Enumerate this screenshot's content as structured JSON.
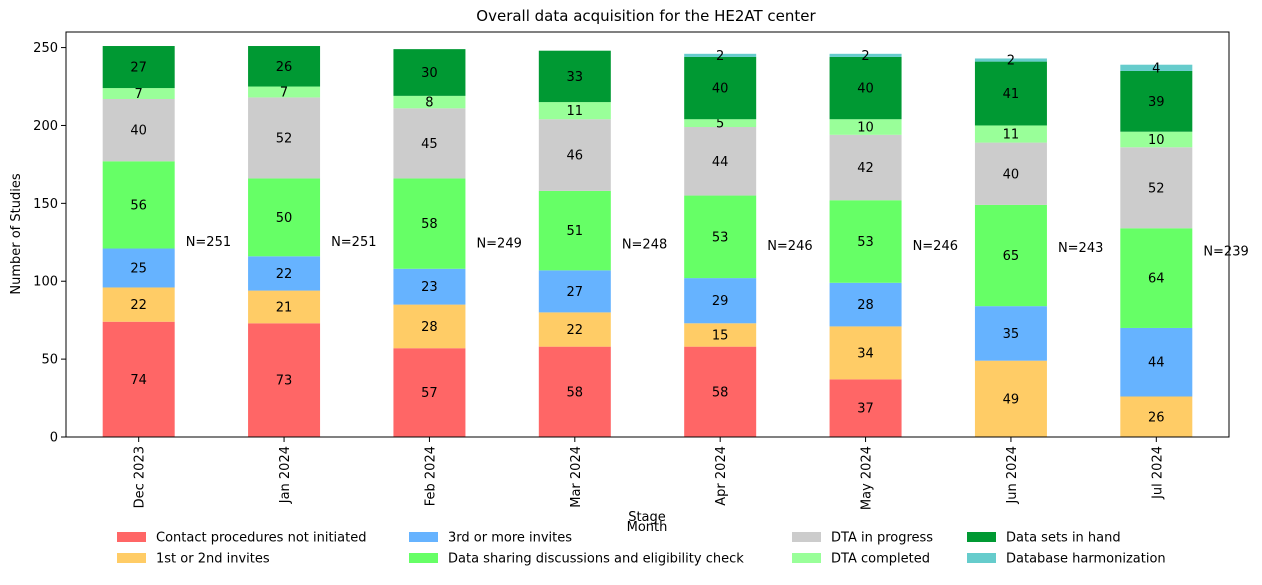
{
  "chart_data": {
    "type": "bar",
    "stacked": true,
    "title": "Overall data acquisition for the HE2AT center",
    "xlabel": "Month",
    "ylabel": "Number of Studies",
    "legend_title": "Stage",
    "legend_placement": "bottom",
    "grid": false,
    "ylim": [
      0,
      260
    ],
    "yticks": [
      0,
      50,
      100,
      150,
      200,
      250
    ],
    "categories": [
      "Dec 2023",
      "Jan 2024",
      "Feb 2024",
      "Mar 2024",
      "Apr 2024",
      "May 2024",
      "Jun 2024",
      "Jul 2024"
    ],
    "totals_labels": [
      "N=251",
      "N=251",
      "N=249",
      "N=248",
      "N=246",
      "N=246",
      "N=243",
      "N=239"
    ],
    "series": [
      {
        "name": "Contact procedures not initiated",
        "color": "#ff6666",
        "values": [
          74,
          73,
          57,
          58,
          58,
          37,
          0,
          0
        ]
      },
      {
        "name": "1st or 2nd invites",
        "color": "#ffcc66",
        "values": [
          22,
          21,
          28,
          22,
          15,
          34,
          49,
          26
        ]
      },
      {
        "name": "3rd or more invites",
        "color": "#66b3ff",
        "values": [
          25,
          22,
          23,
          27,
          29,
          28,
          35,
          44
        ]
      },
      {
        "name": "Data sharing discussions and eligibility check",
        "color": "#66ff66",
        "values": [
          56,
          50,
          58,
          51,
          53,
          53,
          65,
          64
        ]
      },
      {
        "name": "DTA in progress",
        "color": "#cccccc",
        "values": [
          40,
          52,
          45,
          46,
          44,
          42,
          40,
          52
        ]
      },
      {
        "name": "DTA completed",
        "color": "#99ff99",
        "values": [
          7,
          7,
          8,
          11,
          5,
          10,
          11,
          10
        ]
      },
      {
        "name": "Data sets in hand",
        "color": "#009933",
        "values": [
          27,
          26,
          30,
          33,
          40,
          40,
          41,
          39
        ]
      },
      {
        "name": "Database harmonization",
        "color": "#66cccc",
        "values": [
          0,
          0,
          0,
          0,
          2,
          2,
          2,
          4
        ]
      }
    ]
  }
}
